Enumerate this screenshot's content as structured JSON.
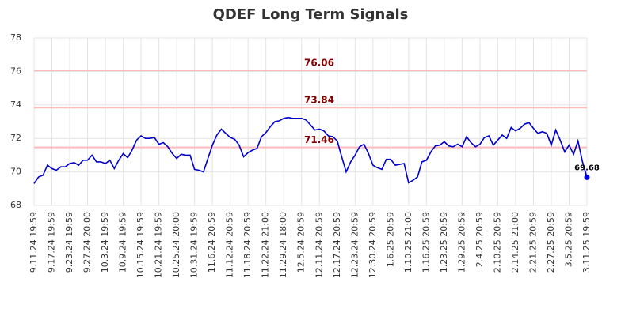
{
  "chart_data": {
    "type": "line",
    "title": "QDEF Long Term Signals",
    "categories": [
      "9.11.24 19:59",
      null,
      null,
      null,
      "9.17.24 19:59",
      null,
      null,
      null,
      "9.23.24 19:59",
      null,
      null,
      null,
      "9.27.24 20:00",
      null,
      null,
      null,
      "10.3.24 19:59",
      null,
      null,
      null,
      "10.9.24 19:59",
      null,
      null,
      null,
      "10.15.24 19:59",
      null,
      null,
      null,
      "10.21.24 19:59",
      null,
      null,
      null,
      "10.25.24 20:00",
      null,
      null,
      null,
      "10.31.24 19:59",
      null,
      null,
      null,
      "11.6.24 20:59",
      null,
      null,
      null,
      "11.12.24 20:59",
      null,
      null,
      null,
      "11.18.24 20:59",
      null,
      null,
      null,
      "11.22.24 21:00",
      null,
      null,
      null,
      "11.29.24 18:00",
      null,
      null,
      null,
      "12.5.24 20:59",
      null,
      null,
      null,
      "12.11.24 20:59",
      null,
      null,
      null,
      "12.17.24 20:59",
      null,
      null,
      null,
      "12.23.24 20:59",
      null,
      null,
      null,
      "12.30.24 20:59",
      null,
      null,
      null,
      "1.6.25 20:59",
      null,
      null,
      null,
      "1.10.25 21:00",
      null,
      null,
      null,
      "1.16.25 20:59",
      null,
      null,
      null,
      "1.23.25 20:59",
      null,
      null,
      null,
      "1.29.25 20:59",
      null,
      null,
      null,
      "2.4.25 20:59",
      null,
      null,
      null,
      "2.10.25 20:59",
      null,
      null,
      null,
      "2.14.25 21:00",
      null,
      null,
      null,
      "2.21.25 20:59",
      null,
      null,
      null,
      "2.27.25 20:59",
      null,
      null,
      null,
      "3.5.25 20:59",
      null,
      null,
      null,
      "3.11.25 19:59"
    ],
    "series": [
      {
        "color": "#0000cc",
        "values": [
          69.3,
          69.7,
          69.8,
          70.4,
          70.2,
          70.1,
          70.3,
          70.3,
          70.5,
          70.55,
          70.4,
          70.7,
          70.7,
          71.0,
          70.6,
          70.6,
          70.5,
          70.7,
          70.2,
          70.7,
          71.1,
          70.85,
          71.3,
          71.9,
          72.15,
          72.0,
          72.0,
          72.05,
          71.65,
          71.75,
          71.5,
          71.1,
          70.8,
          71.05,
          71.0,
          71.0,
          70.15,
          70.1,
          70.0,
          70.8,
          71.6,
          72.2,
          72.55,
          72.3,
          72.05,
          71.95,
          71.6,
          70.9,
          71.15,
          71.3,
          71.4,
          72.1,
          72.35,
          72.7,
          73.0,
          73.05,
          73.2,
          73.25,
          73.2,
          73.2,
          73.2,
          73.1,
          72.8,
          72.5,
          72.55,
          72.45,
          72.15,
          72.1,
          71.85,
          70.9,
          70.0,
          70.6,
          71.0,
          71.5,
          71.65,
          71.1,
          70.4,
          70.25,
          70.15,
          70.75,
          70.75,
          70.4,
          70.45,
          70.5,
          69.35,
          69.5,
          69.7,
          70.6,
          70.7,
          71.2,
          71.55,
          71.6,
          71.8,
          71.55,
          71.5,
          71.65,
          71.5,
          72.1,
          71.75,
          71.5,
          71.65,
          72.05,
          72.15,
          71.6,
          71.9,
          72.2,
          72.0,
          72.65,
          72.45,
          72.6,
          72.85,
          72.95,
          72.6,
          72.3,
          72.4,
          72.3,
          71.6,
          72.5,
          71.9,
          71.2,
          71.6,
          71.05,
          71.85,
          70.6,
          69.68
        ]
      }
    ],
    "reference_lines": [
      76.06,
      73.84,
      71.46
    ],
    "reference_color": "#ffbbbb",
    "reference_label_color": "#800000",
    "ylim": [
      68,
      78
    ],
    "yticks": [
      68,
      70,
      72,
      74,
      76,
      78
    ],
    "grid": true
  }
}
